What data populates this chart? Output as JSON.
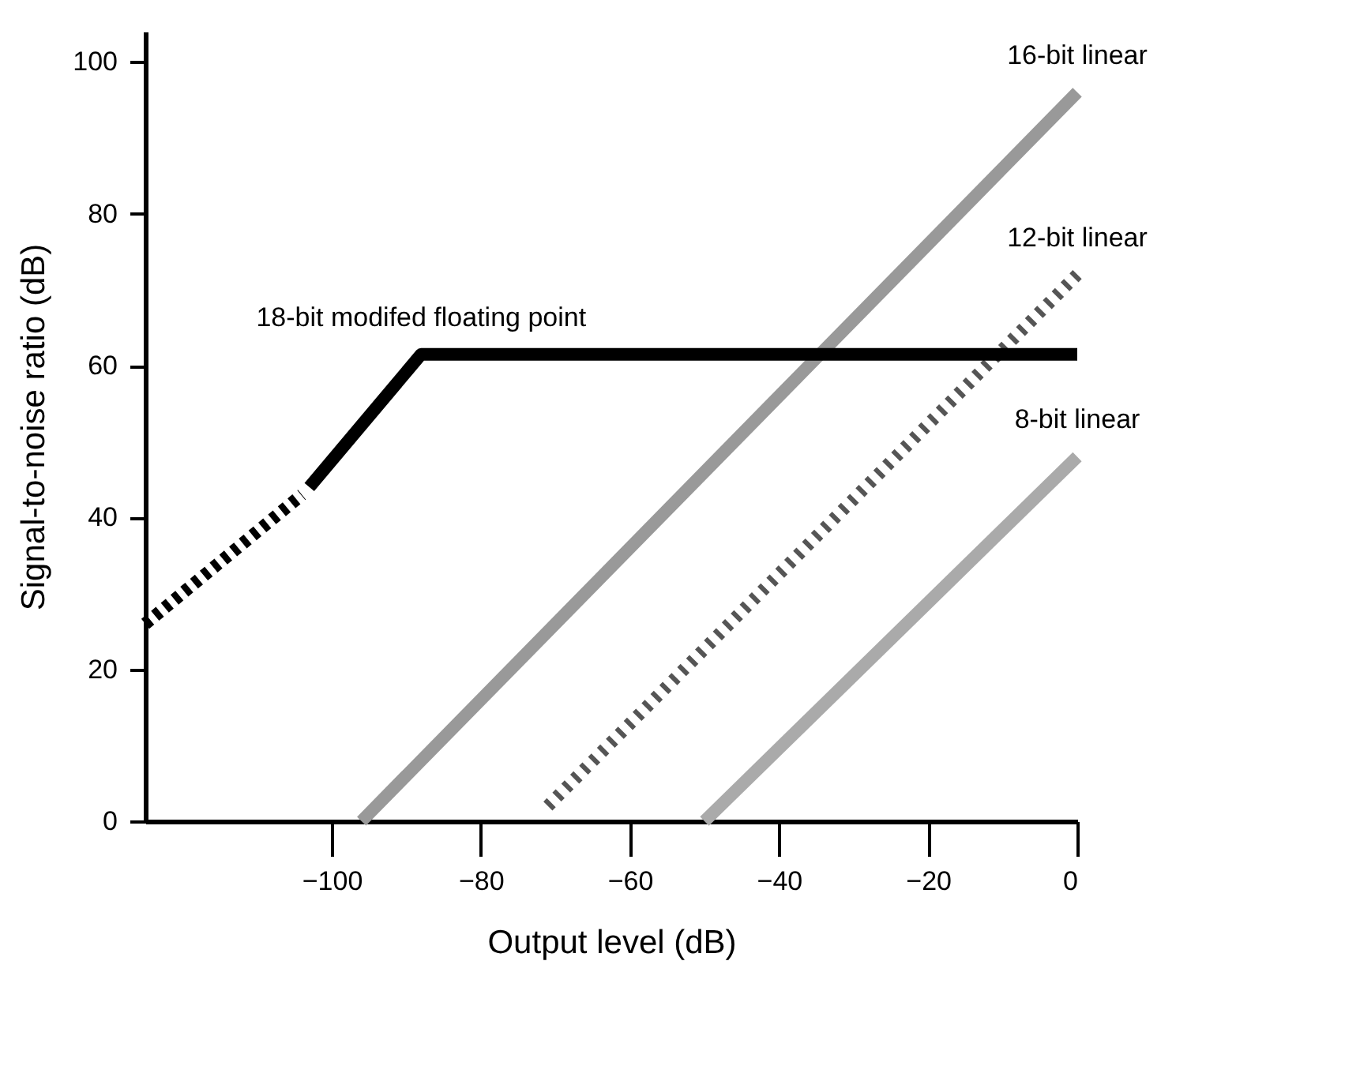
{
  "chart_data": {
    "type": "line",
    "xlabel": "Output level (dB)",
    "ylabel": "Signal-to-noise ratio (dB)",
    "xlim": [
      -125,
      0
    ],
    "ylim": [
      0,
      104
    ],
    "xticks": [
      -100,
      -80,
      -60,
      -40,
      -20,
      0
    ],
    "yticks": [
      0,
      20,
      40,
      60,
      80,
      100
    ],
    "series": [
      {
        "name": "16-bit linear",
        "color": "#999999",
        "line_style": "solid",
        "x": [
          -96,
          0
        ],
        "values": [
          0,
          96
        ]
      },
      {
        "name": "12-bit linear",
        "color": "#555555",
        "line_style": "dotted",
        "x": [
          -71,
          0
        ],
        "values": [
          2,
          72
        ]
      },
      {
        "name": "8-bit linear",
        "color": "#aaaaaa",
        "line_style": "solid",
        "x": [
          -50,
          0
        ],
        "values": [
          0,
          48
        ]
      },
      {
        "color": "#000000",
        "line_style": "dashed",
        "x": [
          -125,
          -104
        ],
        "values": [
          26,
          43
        ]
      },
      {
        "name": "18-bit modifed floating point",
        "color": "#000000",
        "line_style": "solid",
        "x": [
          -103,
          -88,
          0
        ],
        "values": [
          44,
          61.5,
          61.5
        ]
      }
    ]
  }
}
